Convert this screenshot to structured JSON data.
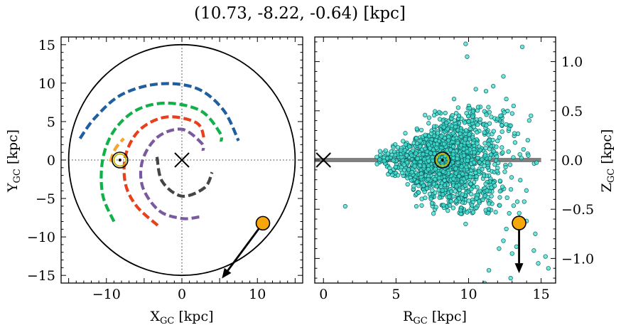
{
  "chart_data": {
    "title": "(10.73, -8.22, -0.64) [kpc]",
    "panels": [
      {
        "type": "line",
        "name": "galactic-plane-xy",
        "xlabel_main": "X",
        "xlabel_sub": "GC",
        "xlabel_unit": " [kpc]",
        "ylabel_main": "Y",
        "ylabel_sub": "GC",
        "ylabel_unit": " [kpc]",
        "xlim": [
          -16,
          16
        ],
        "ylim": [
          -16,
          16
        ],
        "xticks": [
          -10,
          0,
          10
        ],
        "xticklabels": [
          "−10",
          "0",
          "10"
        ],
        "yticks": [
          -15,
          -10,
          -5,
          0,
          5,
          10,
          15
        ],
        "yticklabels": [
          "−15",
          "−10",
          "−5",
          "0",
          "5",
          "10",
          "15"
        ],
        "boundary_circle_radius": 15,
        "galactic_center": [
          0,
          0
        ],
        "sun": [
          -8.2,
          0
        ],
        "object": [
          10.73,
          -8.22
        ],
        "velocity_arrow_end": [
          5.3,
          -15.4
        ],
        "spiral_arms": [
          {
            "color": "#1f5fa0",
            "points": [
              [
                -13.5,
                2.8
              ],
              [
                -11.5,
                5.5
              ],
              [
                -8,
                8.5
              ],
              [
                -3,
                9.9
              ],
              [
                2,
                9.3
              ],
              [
                5.5,
                6.5
              ],
              [
                7.5,
                2.5
              ]
            ]
          },
          {
            "color": "#12b04a",
            "points": [
              [
                -9,
                -8
              ],
              [
                -10.5,
                -4.5
              ],
              [
                -10.5,
                0
              ],
              [
                -9,
                3.8
              ],
              [
                -6,
                6.5
              ],
              [
                -2,
                7.4
              ],
              [
                2.5,
                6.4
              ],
              [
                5,
                3.6
              ],
              [
                5.2,
                2.4
              ]
            ]
          },
          {
            "color": "#f5a52a",
            "points": [
              [
                -9.5,
                -0.2
              ],
              [
                -8.8,
                1.5
              ],
              [
                -7.7,
                2.8
              ]
            ]
          },
          {
            "color": "#e8401c",
            "points": [
              [
                -3.2,
                -8.5
              ],
              [
                -6,
                -6
              ],
              [
                -7.5,
                -3
              ],
              [
                -7.4,
                0.8
              ],
              [
                -5.5,
                4
              ],
              [
                -2,
                5.6
              ],
              [
                2,
                4.8
              ],
              [
                3,
                2.5
              ]
            ]
          },
          {
            "color": "#7a5a9f",
            "points": [
              [
                2.3,
                -7.4
              ],
              [
                0,
                -7.6
              ],
              [
                -3,
                -6.6
              ],
              [
                -5.2,
                -3.5
              ],
              [
                -5.2,
                0
              ],
              [
                -3.2,
                3
              ],
              [
                0,
                4
              ],
              [
                2.6,
                2.2
              ],
              [
                2.8,
                1.2
              ]
            ]
          },
          {
            "color": "#454545",
            "points": [
              [
                -3.3,
                0.4
              ],
              [
                -2.6,
                -2.8
              ],
              [
                0,
                -4.7
              ],
              [
                3,
                -3.6
              ],
              [
                4,
                -1.6
              ]
            ]
          }
        ]
      },
      {
        "type": "scatter",
        "name": "r-z-plane",
        "xlabel_main": "R",
        "xlabel_sub": "GC",
        "xlabel_unit": " [kpc]",
        "ylabel_main": "Z",
        "ylabel_sub": "GC",
        "ylabel_unit": " [kpc]",
        "xlim": [
          -0.6,
          16
        ],
        "ylim": [
          -1.25,
          1.25
        ],
        "xticks": [
          0,
          5,
          10,
          15
        ],
        "xticklabels": [
          "0",
          "5",
          "10",
          "15"
        ],
        "yticks": [
          -1.0,
          -0.5,
          0.0,
          0.5,
          1.0
        ],
        "yticklabels": [
          "−1.0",
          "−0.5",
          "0.0",
          "0.5",
          "1.0"
        ],
        "disk_line": {
          "x": [
            -0.6,
            15
          ],
          "y": 0
        },
        "galactic_center": [
          0,
          0
        ],
        "sun": [
          8.2,
          0
        ],
        "object": [
          13.48,
          -0.64
        ],
        "velocity_arrow_end": [
          13.48,
          -1.15
        ],
        "scatter_style": {
          "face": "#3fe0d0",
          "edge": "#0e5f60"
        },
        "scatter_outliers": [
          [
            9.8,
            1.18
          ],
          [
            9.9,
            1.05
          ],
          [
            13.7,
            1.15
          ],
          [
            12.4,
            0.85
          ],
          [
            11.7,
            0.75
          ],
          [
            12.6,
            0.62
          ],
          [
            13.1,
            0.55
          ],
          [
            11.2,
            0.7
          ],
          [
            10.5,
            0.72
          ],
          [
            9.0,
            0.62
          ],
          [
            12.9,
            0.35
          ],
          [
            12.2,
            0.45
          ],
          [
            1.5,
            -0.47
          ],
          [
            6.4,
            -0.47
          ],
          [
            9.8,
            -0.65
          ],
          [
            14.0,
            -0.62
          ],
          [
            14.6,
            -0.75
          ],
          [
            12.6,
            -0.7
          ],
          [
            12.4,
            -0.82
          ],
          [
            13.0,
            -0.95
          ],
          [
            14.5,
            -0.92
          ],
          [
            15.3,
            -0.98
          ],
          [
            15.5,
            -1.1
          ],
          [
            14.8,
            -1.05
          ],
          [
            13.3,
            -0.88
          ],
          [
            12.1,
            -0.9
          ],
          [
            11.4,
            -1.12
          ],
          [
            11.1,
            -1.25
          ],
          [
            12.9,
            -1.2
          ]
        ]
      }
    ]
  }
}
